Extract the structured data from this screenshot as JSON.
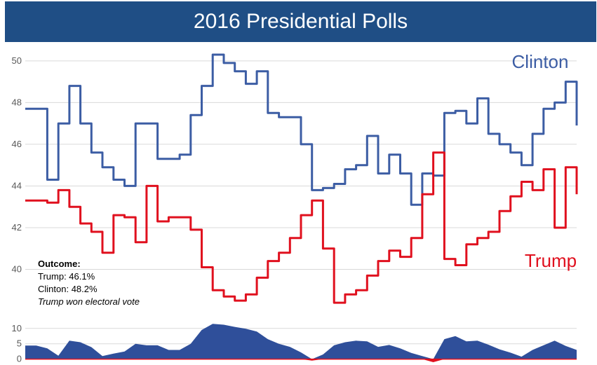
{
  "title": "2016 Presidential Polls",
  "outcome": {
    "heading": "Outcome:",
    "trump": "Trump: 46.1%",
    "clinton": "Clinton: 48.2%",
    "note": "Trump won electoral vote"
  },
  "colors": {
    "clinton": "#3c5da4",
    "trump": "#e0101e",
    "lead": "#2f4f9a",
    "grid": "#d9d9d9"
  },
  "chart_data": [
    {
      "type": "line",
      "title": "2016 Presidential Polls",
      "xlabel": "",
      "ylabel": "",
      "ylim": [
        38,
        50.5
      ],
      "yticks": [
        40,
        42,
        44,
        46,
        48,
        50
      ],
      "grid": true,
      "x": [
        0,
        2,
        4,
        6,
        8,
        10,
        12,
        14,
        16,
        18,
        20,
        22,
        24,
        26,
        28,
        30,
        32,
        34,
        36,
        38,
        40,
        42,
        44,
        46,
        48,
        50,
        52,
        54,
        56,
        58,
        60,
        62,
        64,
        66,
        68,
        70,
        72,
        74,
        76,
        78,
        80,
        82,
        84,
        86,
        88,
        90,
        92,
        94,
        96,
        98,
        100
      ],
      "series": [
        {
          "name": "Clinton",
          "values": [
            47.7,
            47.7,
            44.3,
            47.0,
            48.8,
            47.0,
            45.6,
            44.9,
            44.3,
            44.0,
            47.0,
            47.0,
            45.3,
            45.3,
            45.5,
            47.4,
            48.8,
            50.3,
            49.9,
            49.5,
            48.9,
            49.5,
            47.5,
            47.3,
            47.3,
            46.0,
            43.8,
            43.9,
            44.1,
            44.8,
            45.0,
            46.4,
            44.6,
            45.5,
            44.6,
            43.1,
            44.6,
            44.5,
            47.5,
            47.6,
            47.0,
            48.2,
            46.5,
            46.0,
            45.6,
            45.0,
            46.5,
            47.7,
            48.0,
            49.0,
            46.9
          ]
        },
        {
          "name": "Trump",
          "values": [
            43.3,
            43.3,
            43.2,
            43.8,
            43.0,
            42.2,
            41.8,
            40.8,
            42.6,
            42.5,
            41.3,
            44.0,
            42.3,
            42.5,
            42.5,
            41.9,
            40.1,
            39.0,
            38.7,
            38.5,
            38.8,
            39.6,
            40.4,
            40.8,
            41.5,
            42.6,
            43.3,
            41.0,
            38.4,
            38.8,
            39.0,
            39.7,
            40.4,
            40.9,
            40.6,
            41.5,
            43.6,
            45.6,
            40.5,
            40.2,
            41.2,
            41.5,
            41.8,
            42.8,
            43.5,
            44.2,
            43.8,
            44.8,
            42.0,
            44.9,
            43.6
          ]
        }
      ]
    },
    {
      "type": "area",
      "title": "",
      "ylim": [
        -1,
        12
      ],
      "yticks": [
        0,
        5,
        10
      ],
      "x": [
        0,
        2,
        4,
        6,
        8,
        10,
        12,
        14,
        16,
        18,
        20,
        22,
        24,
        26,
        28,
        30,
        32,
        34,
        36,
        38,
        40,
        42,
        44,
        46,
        48,
        50,
        52,
        54,
        56,
        58,
        60,
        62,
        64,
        66,
        68,
        70,
        72,
        74,
        76,
        78,
        80,
        82,
        84,
        86,
        88,
        90,
        92,
        94,
        96,
        98,
        100
      ],
      "series": [
        {
          "name": "",
          "values": [
            4.4,
            4.4,
            3.5,
            1.1,
            6.0,
            5.5,
            3.9,
            1.0,
            1.8,
            2.5,
            5.0,
            4.5,
            4.5,
            3.0,
            3.0,
            5.0,
            9.5,
            11.5,
            11.2,
            10.5,
            9.9,
            9.0,
            6.5,
            5.0,
            4.0,
            2.2,
            -0.5,
            1.5,
            4.5,
            5.5,
            6.0,
            5.8,
            4.0,
            4.6,
            3.5,
            2.0,
            1.0,
            -1.0,
            6.5,
            7.5,
            5.8,
            6.0,
            4.7,
            3.2,
            2.1,
            0.8,
            3.0,
            4.5,
            6.0,
            4.3,
            3.0
          ]
        }
      ]
    }
  ]
}
